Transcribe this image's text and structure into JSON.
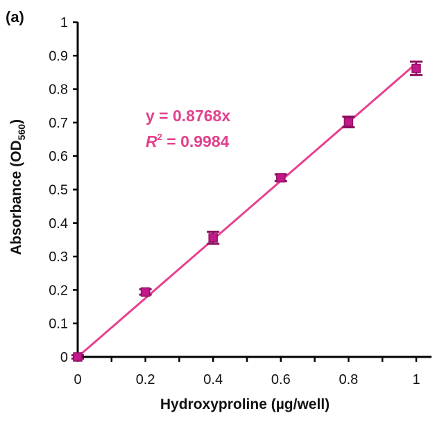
{
  "chart_data": {
    "type": "scatter",
    "panel_label": "(a)",
    "xlabel": "Hydroxyproline (µg/well)",
    "ylabel": "Absorbance (OD",
    "ylabel_sub": "560",
    "ylabel_close": ")",
    "xlim": [
      0,
      1
    ],
    "ylim": [
      0,
      1
    ],
    "xticks": [
      0,
      0.2,
      0.4,
      0.6,
      0.8,
      1
    ],
    "xtick_labels": [
      "0",
      "0.2",
      "0.4",
      "0.6",
      "0.8",
      "1"
    ],
    "yticks": [
      0,
      0.1,
      0.2,
      0.3,
      0.4,
      0.5,
      0.6,
      0.7,
      0.8,
      0.9,
      1
    ],
    "ytick_labels": [
      "0",
      "0.1",
      "0.2",
      "0.3",
      "0.4",
      "0.5",
      "0.6",
      "0.7",
      "0.8",
      "0.9",
      "1"
    ],
    "grid": false,
    "legend": "none",
    "series": [
      {
        "x": [
          0,
          0.2,
          0.4,
          0.6,
          0.8,
          1
        ],
        "y": [
          0,
          0.194,
          0.356,
          0.535,
          0.702,
          0.862
        ],
        "error": [
          0.005,
          0.008,
          0.018,
          0.01,
          0.016,
          0.02
        ]
      }
    ],
    "fit": {
      "slope": 0.8768,
      "intercept": 0
    },
    "annotations": {
      "equation": "y = 0.8768x",
      "r2_symbol": "R",
      "r2_superscript": "2",
      "r2_value": " = 0.9984"
    },
    "colors": {
      "marker": "#c2188c",
      "marker_edge": "#8e1060",
      "fit_line": "#e8408f",
      "annotation": "#e0428c",
      "axis": "#000000"
    }
  }
}
